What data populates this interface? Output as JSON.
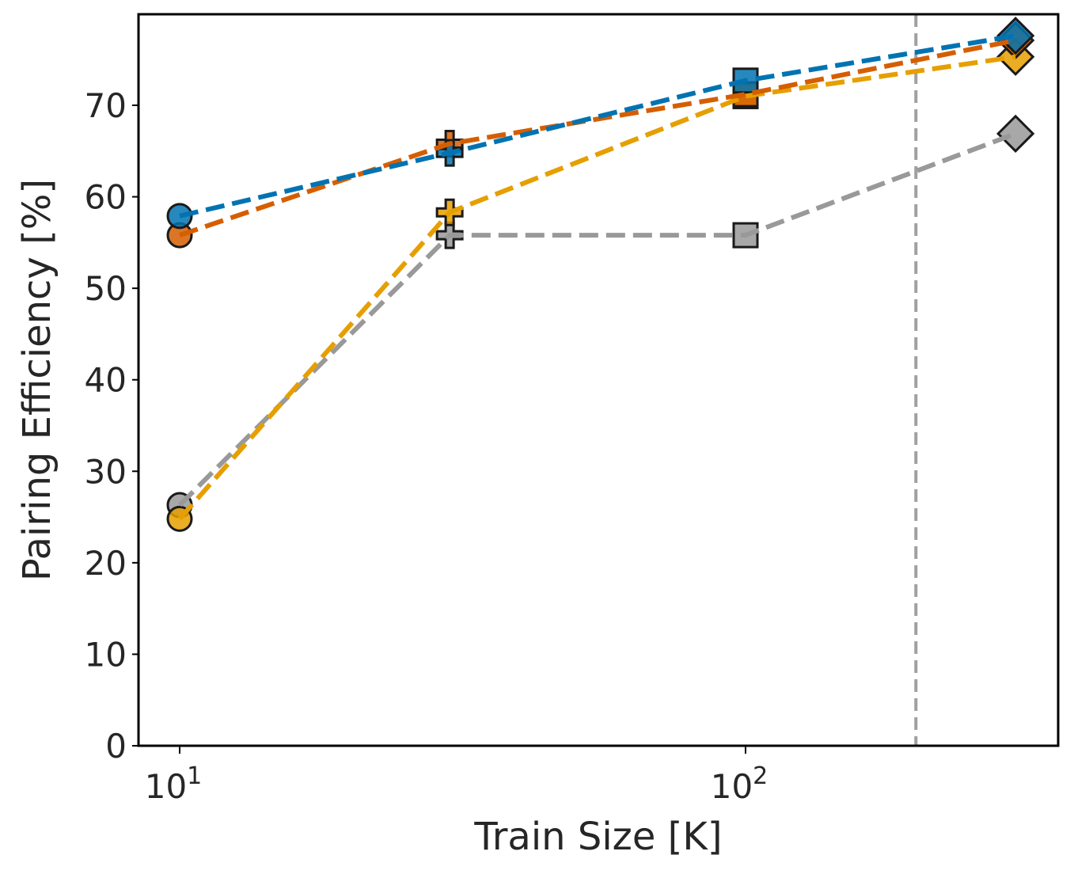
{
  "chart_data": {
    "type": "line",
    "title": "",
    "xlabel": "Train Size [K]",
    "ylabel": "Pairing Efficiency [%]",
    "xscale": "log",
    "xlim": [
      8.5,
      420
    ],
    "ylim": [
      0,
      79
    ],
    "x": [
      10,
      30,
      100,
      300
    ],
    "x_ticks": [
      {
        "value": 10,
        "base": "10",
        "exp": "1"
      },
      {
        "value": 100,
        "base": "10",
        "exp": "2"
      }
    ],
    "y_ticks": [
      0,
      10,
      20,
      30,
      40,
      50,
      60,
      70
    ],
    "markers": [
      "circle",
      "plus",
      "square",
      "diamond"
    ],
    "vline": {
      "x": 200,
      "color": "#a0a0a0",
      "style": "dashed"
    },
    "grid": false,
    "legend": "none",
    "series": [
      {
        "name": "blue",
        "color": "#0173b2",
        "values": [
          57.9,
          64.8,
          72.7,
          77.6
        ]
      },
      {
        "name": "vermilion",
        "color": "#d55e00",
        "values": [
          55.8,
          65.8,
          71.2,
          77.1
        ]
      },
      {
        "name": "orange",
        "color": "#e69f00",
        "values": [
          24.8,
          58.3,
          71.0,
          75.3
        ]
      },
      {
        "name": "gray",
        "color": "#999999",
        "values": [
          26.3,
          55.8,
          55.8,
          66.9
        ]
      }
    ]
  }
}
